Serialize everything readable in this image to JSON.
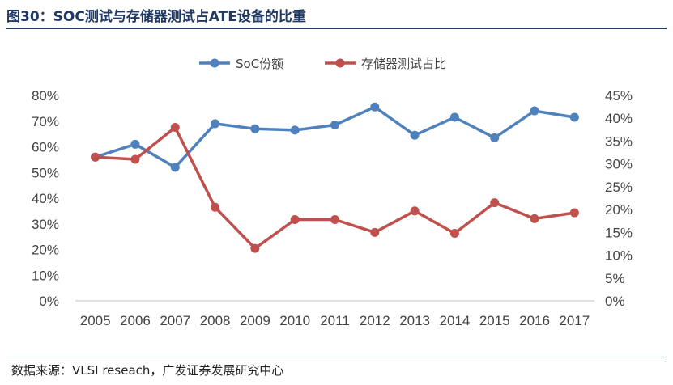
{
  "figure": {
    "title": "图30：SOC测试与存储器测试占ATE设备的比重",
    "source": "数据来源：VLSI reseach，广发证券发展研究中心"
  },
  "chart_data": {
    "type": "line",
    "title": "",
    "xlabel": "",
    "ylabel": "",
    "categories": [
      "2005",
      "2006",
      "2007",
      "2008",
      "2009",
      "2010",
      "2011",
      "2012",
      "2013",
      "2014",
      "2015",
      "2016",
      "2017"
    ],
    "series": [
      {
        "name": "SoC份额",
        "axis": "left",
        "color": "#4f81bd",
        "values": [
          0.56,
          0.61,
          0.52,
          0.69,
          0.67,
          0.665,
          0.685,
          0.755,
          0.645,
          0.715,
          0.635,
          0.74,
          0.715
        ]
      },
      {
        "name": "存储器测试占比",
        "axis": "right",
        "color": "#c0504d",
        "values": [
          0.315,
          0.31,
          0.38,
          0.205,
          0.115,
          0.178,
          0.178,
          0.15,
          0.197,
          0.148,
          0.215,
          0.18,
          0.193
        ]
      }
    ],
    "y_left": {
      "ylim": [
        0,
        0.8
      ],
      "ticks": [
        "0%",
        "10%",
        "20%",
        "30%",
        "40%",
        "50%",
        "60%",
        "70%",
        "80%"
      ]
    },
    "y_right": {
      "ylim": [
        0,
        0.45
      ],
      "ticks": [
        "0%",
        "5%",
        "10%",
        "15%",
        "20%",
        "25%",
        "30%",
        "35%",
        "40%",
        "45%"
      ]
    },
    "legend": "top-center",
    "grid": false
  }
}
